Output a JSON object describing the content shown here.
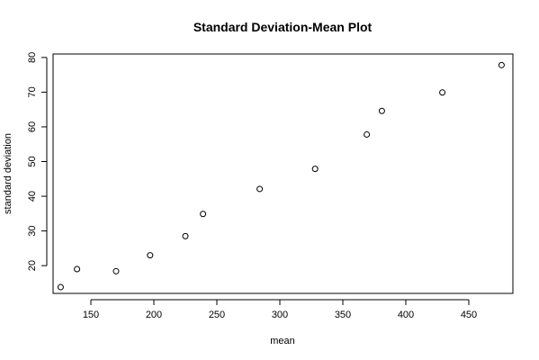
{
  "chart_data": {
    "type": "scatter",
    "title": "Standard Deviation-Mean Plot",
    "xlabel": "mean",
    "ylabel": "standard deviation",
    "xlim": [
      120,
      485
    ],
    "ylim": [
      12,
      81
    ],
    "xticks": [
      150,
      200,
      250,
      300,
      350,
      400,
      450
    ],
    "yticks": [
      20,
      30,
      40,
      50,
      60,
      70,
      80
    ],
    "grid": false,
    "points": [
      {
        "x": 126,
        "y": 13.8
      },
      {
        "x": 139,
        "y": 19.0
      },
      {
        "x": 170,
        "y": 18.4
      },
      {
        "x": 197,
        "y": 23.0
      },
      {
        "x": 225,
        "y": 28.5
      },
      {
        "x": 239,
        "y": 34.9
      },
      {
        "x": 284,
        "y": 42.1
      },
      {
        "x": 328,
        "y": 47.9
      },
      {
        "x": 369,
        "y": 57.8
      },
      {
        "x": 381,
        "y": 64.6
      },
      {
        "x": 429,
        "y": 69.9
      },
      {
        "x": 476,
        "y": 77.8
      }
    ]
  }
}
